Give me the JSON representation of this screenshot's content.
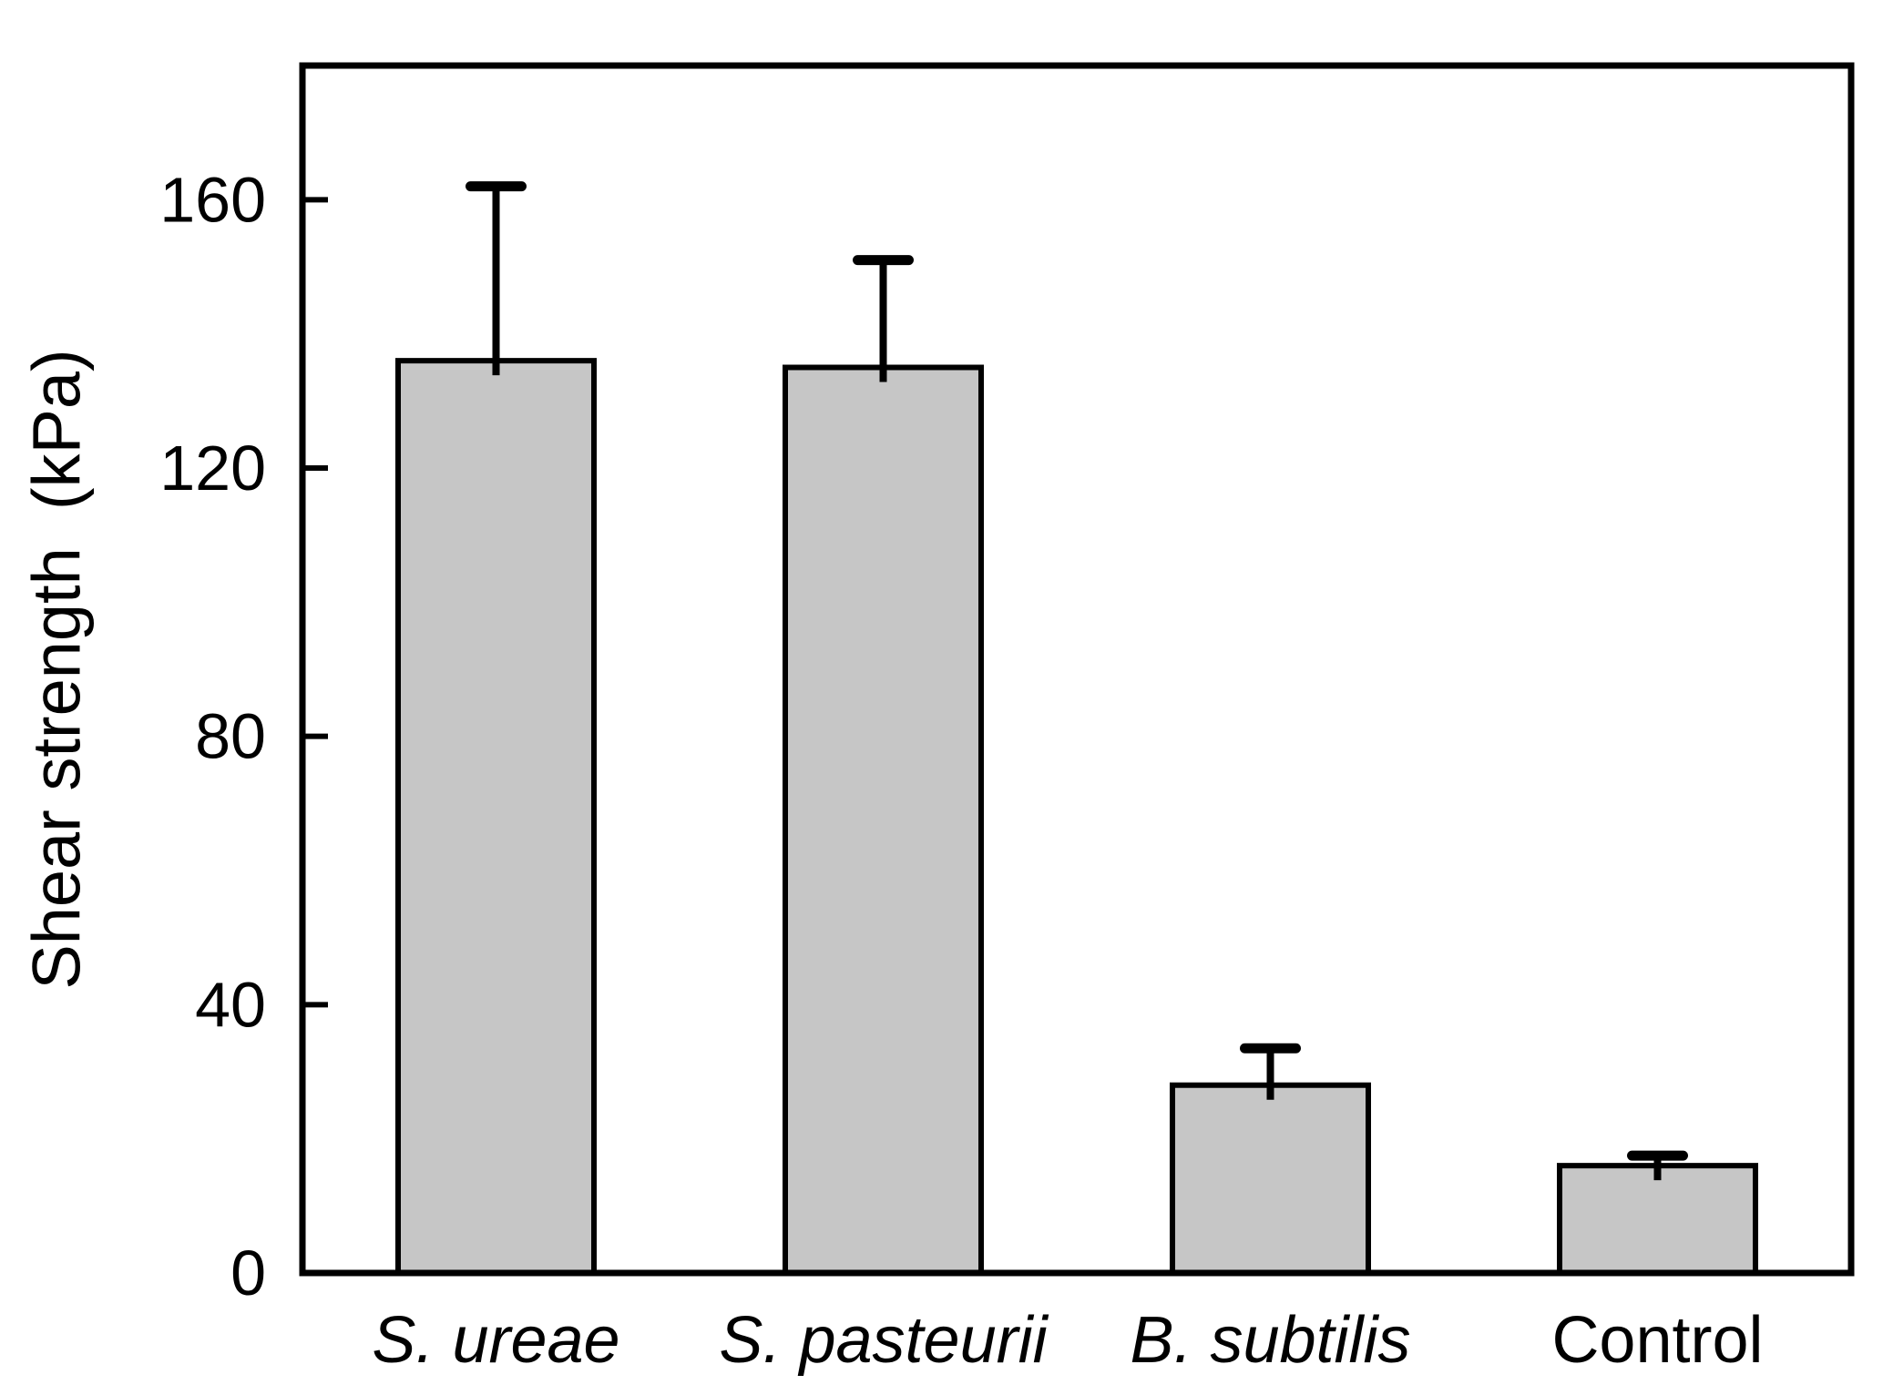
{
  "chart_data": {
    "type": "bar",
    "title": "",
    "xlabel": "",
    "ylabel": "Shear strength  (kPa)",
    "ylim": [
      0,
      180
    ],
    "yticks": [
      0,
      40,
      80,
      120,
      160
    ],
    "grid": false,
    "legend": "none",
    "categories": [
      "S. ureae",
      "S. pasteurii",
      "B. subtilis",
      "Control"
    ],
    "categories_italic": [
      true,
      true,
      true,
      false
    ],
    "values": [
      136,
      135,
      28,
      16
    ],
    "errors_plus": [
      26,
      16,
      5.5,
      1.5
    ],
    "error_bars": "upper-only",
    "colors": {
      "bar_fill": "#c6c6c6",
      "bar_stroke": "#000000",
      "axis_stroke": "#000000",
      "text": "#000000",
      "background": "#ffffff"
    }
  }
}
